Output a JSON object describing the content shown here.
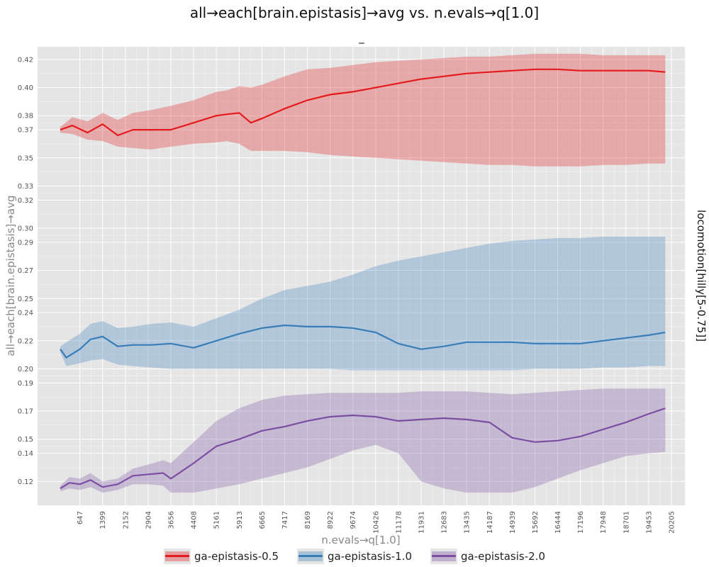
{
  "chart_data": {
    "type": "line",
    "title": "all→each[brain.epistasis]→avg vs. n.evals→q[1.0]",
    "subtitle": "_",
    "xlabel": "n.evals→q[1.0]",
    "ylabel": "all→each[brain.epistasis]→avg",
    "facet_label": "locomotion[hilly[5-0.75]]",
    "x_ticks": [
      "647",
      "1399",
      "2152",
      "2904",
      "3656",
      "4408",
      "5161",
      "5913",
      "6665",
      "7417",
      "8169",
      "8922",
      "9674",
      "10426",
      "11178",
      "11931",
      "12683",
      "13435",
      "14187",
      "14939",
      "15692",
      "16444",
      "17196",
      "17948",
      "18701",
      "19453",
      "20205"
    ],
    "y_ticks": [
      "0.12",
      "0.14",
      "0.15",
      "0.17",
      "0.19",
      "0.20",
      "0.22",
      "0.24",
      "0.25",
      "0.27",
      "0.29",
      "0.30",
      "0.32",
      "0.33",
      "0.35",
      "0.37",
      "0.38",
      "0.40",
      "0.42"
    ],
    "xlim": [
      -750,
      20650
    ],
    "ylim": [
      0.103,
      0.429
    ],
    "grid": true,
    "legend_position": "bottom",
    "series": [
      {
        "name": "ga-epistasis-0.5",
        "color": "#e41a1c",
        "x": [
          0,
          400,
          900,
          1399,
          1900,
          2400,
          3000,
          3656,
          4408,
          5161,
          5500,
          5913,
          6300,
          6665,
          7417,
          8169,
          8922,
          9674,
          10426,
          11178,
          11931,
          12683,
          13435,
          14187,
          14939,
          15692,
          16444,
          17196,
          17948,
          18701,
          19453,
          20000
        ],
        "mean": [
          0.37,
          0.373,
          0.368,
          0.374,
          0.366,
          0.37,
          0.37,
          0.37,
          0.375,
          0.38,
          0.381,
          0.382,
          0.375,
          0.378,
          0.385,
          0.391,
          0.395,
          0.397,
          0.4,
          0.403,
          0.406,
          0.408,
          0.41,
          0.411,
          0.412,
          0.413,
          0.413,
          0.412,
          0.412,
          0.412,
          0.412,
          0.411
        ],
        "lower": [
          0.368,
          0.367,
          0.363,
          0.362,
          0.358,
          0.357,
          0.356,
          0.358,
          0.36,
          0.361,
          0.362,
          0.36,
          0.355,
          0.355,
          0.355,
          0.354,
          0.352,
          0.351,
          0.35,
          0.349,
          0.348,
          0.347,
          0.346,
          0.345,
          0.345,
          0.344,
          0.344,
          0.344,
          0.345,
          0.345,
          0.346,
          0.346
        ],
        "upper": [
          0.372,
          0.379,
          0.376,
          0.382,
          0.377,
          0.382,
          0.384,
          0.387,
          0.391,
          0.397,
          0.398,
          0.401,
          0.4,
          0.402,
          0.408,
          0.413,
          0.414,
          0.416,
          0.418,
          0.419,
          0.42,
          0.421,
          0.422,
          0.422,
          0.423,
          0.424,
          0.424,
          0.424,
          0.423,
          0.423,
          0.423,
          0.423
        ]
      },
      {
        "name": "ga-epistasis-1.0",
        "color": "#377eb8",
        "x": [
          0,
          200,
          647,
          1000,
          1399,
          1900,
          2400,
          3000,
          3656,
          4408,
          5161,
          5913,
          6665,
          7417,
          8169,
          8922,
          9674,
          10426,
          11178,
          11931,
          12683,
          13435,
          14187,
          14939,
          15692,
          16444,
          17196,
          17948,
          18701,
          19453,
          20000
        ],
        "mean": [
          0.214,
          0.208,
          0.214,
          0.221,
          0.223,
          0.216,
          0.217,
          0.217,
          0.218,
          0.215,
          0.22,
          0.225,
          0.229,
          0.231,
          0.23,
          0.23,
          0.229,
          0.226,
          0.218,
          0.214,
          0.216,
          0.219,
          0.219,
          0.219,
          0.218,
          0.218,
          0.218,
          0.22,
          0.222,
          0.224,
          0.226
        ],
        "lower": [
          0.212,
          0.202,
          0.204,
          0.206,
          0.207,
          0.203,
          0.202,
          0.201,
          0.2,
          0.2,
          0.2,
          0.2,
          0.2,
          0.2,
          0.2,
          0.2,
          0.199,
          0.199,
          0.199,
          0.199,
          0.199,
          0.199,
          0.199,
          0.199,
          0.2,
          0.2,
          0.2,
          0.201,
          0.201,
          0.202,
          0.202
        ],
        "upper": [
          0.216,
          0.219,
          0.225,
          0.232,
          0.234,
          0.229,
          0.23,
          0.232,
          0.233,
          0.23,
          0.236,
          0.242,
          0.25,
          0.256,
          0.259,
          0.262,
          0.267,
          0.273,
          0.277,
          0.28,
          0.283,
          0.286,
          0.289,
          0.291,
          0.292,
          0.293,
          0.293,
          0.294,
          0.294,
          0.294,
          0.294
        ]
      },
      {
        "name": "ga-epistasis-2.0",
        "color": "#7b4ea3",
        "x": [
          0,
          300,
          647,
          1000,
          1399,
          1900,
          2400,
          2904,
          3400,
          3656,
          4408,
          5161,
          5913,
          6665,
          7417,
          8169,
          8922,
          9674,
          10426,
          11178,
          11931,
          12683,
          13435,
          14187,
          14939,
          15692,
          16444,
          17196,
          17948,
          18701,
          19453,
          20000
        ],
        "mean": [
          0.115,
          0.119,
          0.118,
          0.121,
          0.116,
          0.118,
          0.124,
          0.125,
          0.126,
          0.122,
          0.133,
          0.145,
          0.15,
          0.156,
          0.159,
          0.163,
          0.166,
          0.167,
          0.166,
          0.163,
          0.164,
          0.165,
          0.164,
          0.162,
          0.151,
          0.148,
          0.149,
          0.152,
          0.157,
          0.162,
          0.168,
          0.172
        ],
        "lower": [
          0.113,
          0.115,
          0.114,
          0.116,
          0.112,
          0.114,
          0.118,
          0.118,
          0.117,
          0.112,
          0.112,
          0.115,
          0.118,
          0.122,
          0.126,
          0.13,
          0.136,
          0.142,
          0.146,
          0.14,
          0.12,
          0.115,
          0.112,
          0.112,
          0.112,
          0.116,
          0.122,
          0.128,
          0.133,
          0.138,
          0.14,
          0.141
        ],
        "upper": [
          0.117,
          0.123,
          0.122,
          0.126,
          0.12,
          0.122,
          0.129,
          0.132,
          0.135,
          0.133,
          0.148,
          0.163,
          0.172,
          0.178,
          0.181,
          0.182,
          0.183,
          0.183,
          0.183,
          0.183,
          0.184,
          0.184,
          0.184,
          0.183,
          0.182,
          0.183,
          0.184,
          0.185,
          0.186,
          0.186,
          0.186,
          0.186
        ]
      }
    ]
  }
}
